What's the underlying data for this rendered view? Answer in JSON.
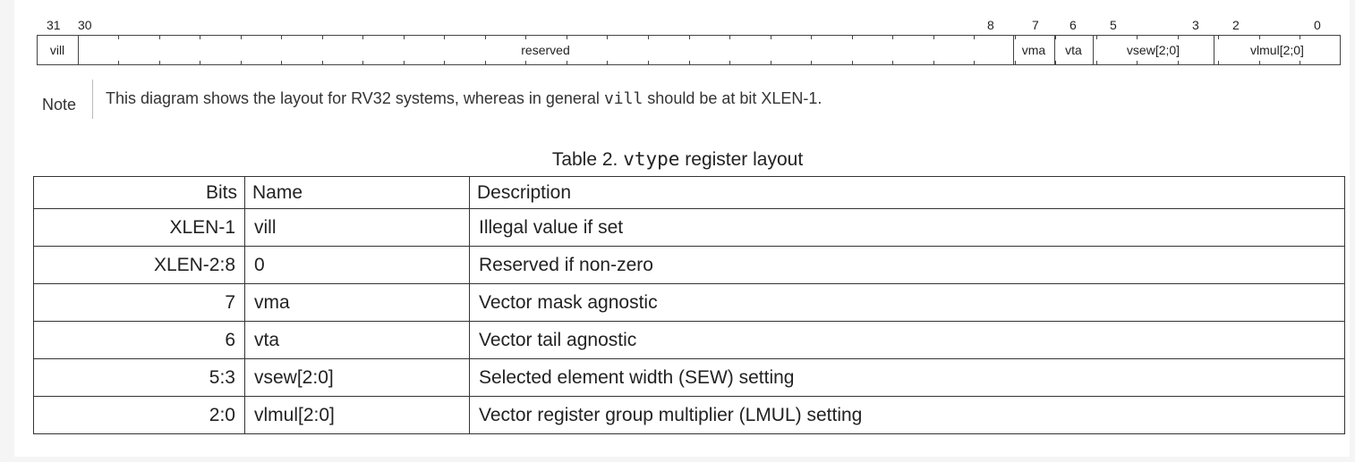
{
  "register": {
    "bit_numbers": [
      "31",
      "30",
      "8",
      "7",
      "6",
      "5",
      "3",
      "2",
      "0"
    ],
    "fields": [
      "vill",
      "reserved",
      "vma",
      "vta",
      "vsew[2;0]",
      "vlmul[2;0]"
    ]
  },
  "note": {
    "label": "Note",
    "text_before": "This diagram shows the layout for RV32 systems, whereas in general ",
    "code": "vill",
    "text_after": " should be at bit XLEN-1."
  },
  "caption": {
    "prefix": "Table 2. ",
    "code": "vtype",
    "suffix": " register layout"
  },
  "table": {
    "headers": [
      "Bits",
      "Name",
      "Description"
    ],
    "rows": [
      [
        "XLEN-1",
        "vill",
        "Illegal value if set"
      ],
      [
        "XLEN-2:8",
        "0",
        "Reserved if non-zero"
      ],
      [
        "7",
        "vma",
        "Vector mask agnostic"
      ],
      [
        "6",
        "vta",
        "Vector tail agnostic"
      ],
      [
        "5:3",
        "vsew[2:0]",
        "Selected element width (SEW) setting"
      ],
      [
        "2:0",
        "vlmul[2:0]",
        "Vector register group multiplier (LMUL) setting"
      ]
    ]
  }
}
